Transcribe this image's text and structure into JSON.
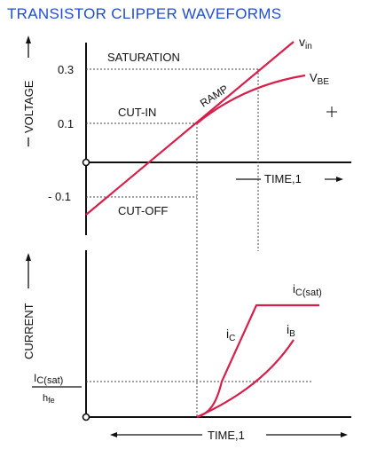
{
  "title": "TRANSISTOR CLIPPER WAVEFORMS",
  "colors": {
    "title": "#1f4fd1",
    "curve": "#d81f4a",
    "axis": "#111111",
    "guide": "#444444"
  },
  "voltage_panel": {
    "axis_label": "VOLTAGE",
    "time_label": "TIME,1",
    "ticks": {
      "high": "0.3",
      "mid": "0.1",
      "low": "- 0.1"
    },
    "regions": {
      "saturation": "SATURATION",
      "cut_in": "CUT-IN",
      "cut_off": "CUT-OFF",
      "ramp": "RAMP"
    },
    "curves": {
      "vin_main": "v",
      "vin_sub": "in",
      "vbe_main": "V",
      "vbe_sub": "BE"
    }
  },
  "current_panel": {
    "axis_label": "CURRENT",
    "time_label": "TIME,1",
    "ic_sat_main": "I",
    "ic_sat_sub": "C(sat)",
    "ic_sat_level_main": "i",
    "ic_sat_level_sub": "C(sat)",
    "hfe": "h",
    "hfe_sub": "fe",
    "curves": {
      "ic_main": "i",
      "ic_sub": "C",
      "ib_main": "i",
      "ib_sub": "B"
    }
  }
}
